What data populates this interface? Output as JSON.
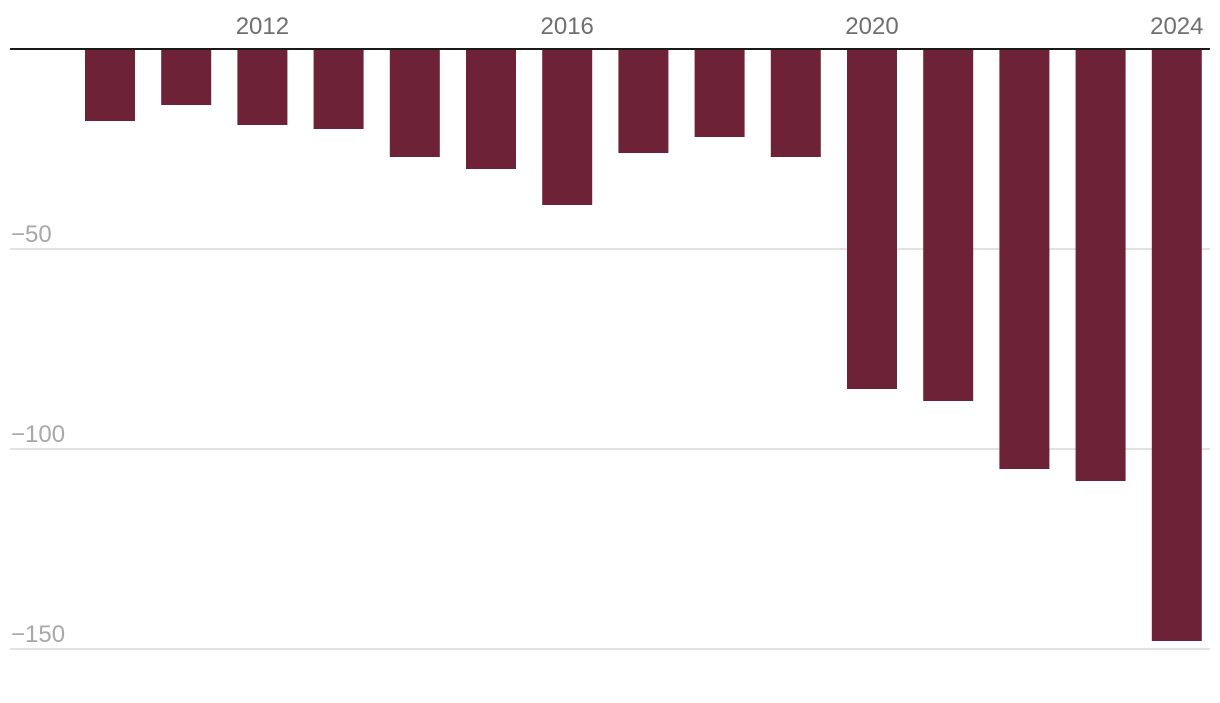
{
  "chart_data": {
    "type": "bar",
    "title": "",
    "xlabel": "",
    "ylabel": "",
    "categories": [
      "2010",
      "2011",
      "2012",
      "2013",
      "2014",
      "2015",
      "2016",
      "2017",
      "2018",
      "2019",
      "2020",
      "2021",
      "2022",
      "2023",
      "2024"
    ],
    "values": [
      -18,
      -14,
      -19,
      -20,
      -27,
      -30,
      -39,
      -26,
      -22,
      -27,
      -85,
      -88,
      -105,
      -108,
      -148
    ],
    "x_tick_labels": [
      "2012",
      "2016",
      "2020",
      "2024"
    ],
    "y_ticks": [
      -50,
      -100,
      -150
    ],
    "y_tick_labels": [
      "−50",
      "−100",
      "−150"
    ],
    "ylim": [
      -150,
      0
    ],
    "x_axis_position": "top",
    "grid": true,
    "legend": "none",
    "colors": {
      "bar": "#6d2238",
      "grid": "#e2e2e2",
      "axis": "#1a1a1a",
      "x_tick_text": "#6f6f6f",
      "y_tick_text": "#a8a8a8"
    }
  }
}
